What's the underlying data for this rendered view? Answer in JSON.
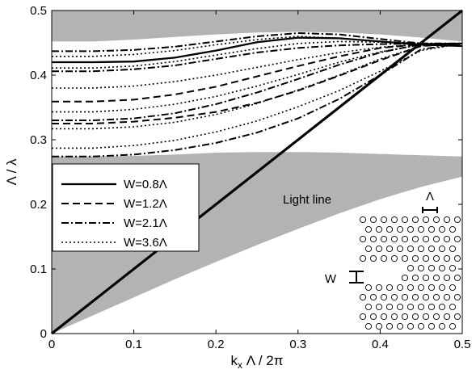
{
  "chart_data": {
    "type": "line",
    "xlabel": "k_x Λ / 2π",
    "ylabel": "Λ / λ",
    "xlim": [
      0,
      0.5
    ],
    "ylim": [
      0,
      0.5
    ],
    "xticks": [
      "0",
      "0.1",
      "0.2",
      "0.3",
      "0.4",
      "0.5"
    ],
    "yticks": [
      "0",
      "0.1",
      "0.2",
      "0.3",
      "0.4",
      "0.5"
    ],
    "grid": false,
    "legend_position": "center-left",
    "shade_color": "#b3b3b3",
    "bands": {
      "upper_band_lower_edge": {
        "x": [
          0,
          0.05,
          0.1,
          0.15,
          0.2,
          0.25,
          0.3,
          0.35,
          0.4,
          0.45,
          0.5
        ],
        "y": [
          0.452,
          0.452,
          0.455,
          0.459,
          0.463,
          0.466,
          0.467,
          0.466,
          0.463,
          0.458,
          0.452
        ]
      },
      "lower_band_upper_edge": {
        "x": [
          0,
          0.05,
          0.1,
          0.15,
          0.2,
          0.25,
          0.3,
          0.35,
          0.4,
          0.45,
          0.5
        ],
        "y": [
          0.274,
          0.274,
          0.275,
          0.277,
          0.28,
          0.281,
          0.281,
          0.28,
          0.278,
          0.276,
          0.274
        ]
      },
      "lower_band_lower_edge": {
        "x": [
          0,
          0.05,
          0.1,
          0.15,
          0.2,
          0.25,
          0.3,
          0.35,
          0.4,
          0.45,
          0.5
        ],
        "y": [
          0,
          0.028,
          0.056,
          0.084,
          0.111,
          0.137,
          0.162,
          0.186,
          0.208,
          0.227,
          0.243
        ]
      }
    },
    "light_line": {
      "x": [
        0,
        0.5
      ],
      "y": [
        0,
        0.5
      ]
    },
    "series": [
      {
        "name": "W=0.8Λ",
        "dash": "solid",
        "width": 2.3,
        "curves": [
          {
            "x": [
              0,
              0.05,
              0.1,
              0.15,
              0.2,
              0.25,
              0.3,
              0.35,
              0.4,
              0.45,
              0.5
            ],
            "y": [
              0.42,
              0.42,
              0.421,
              0.427,
              0.438,
              0.451,
              0.458,
              0.457,
              0.452,
              0.447,
              0.445
            ]
          }
        ]
      },
      {
        "name": "W=1.2Λ",
        "dash": "dash",
        "width": 2.0,
        "curves": [
          {
            "x": [
              0,
              0.05,
              0.1,
              0.15,
              0.2,
              0.25,
              0.3,
              0.35,
              0.4,
              0.45,
              0.5
            ],
            "y": [
              0.359,
              0.359,
              0.362,
              0.37,
              0.382,
              0.398,
              0.414,
              0.429,
              0.442,
              0.448,
              0.449
            ]
          },
          {
            "x": [
              0,
              0.05,
              0.1,
              0.15,
              0.2,
              0.25,
              0.3,
              0.35,
              0.4,
              0.45,
              0.5
            ],
            "y": [
              0.325,
              0.325,
              0.328,
              0.334,
              0.343,
              0.357,
              0.376,
              0.399,
              0.423,
              0.445,
              0.449
            ]
          }
        ]
      },
      {
        "name": "W=2.1Λ",
        "dash": "dashdot",
        "width": 2.0,
        "curves": [
          {
            "x": [
              0,
              0.05,
              0.1,
              0.15,
              0.2,
              0.25,
              0.3,
              0.35,
              0.4,
              0.45,
              0.5
            ],
            "y": [
              0.437,
              0.437,
              0.439,
              0.444,
              0.452,
              0.46,
              0.465,
              0.463,
              0.456,
              0.449,
              0.447
            ]
          },
          {
            "x": [
              0,
              0.05,
              0.1,
              0.15,
              0.2,
              0.25,
              0.3,
              0.35,
              0.4,
              0.45,
              0.5
            ],
            "y": [
              0.406,
              0.406,
              0.409,
              0.415,
              0.425,
              0.435,
              0.442,
              0.446,
              0.448,
              0.449,
              0.449
            ]
          },
          {
            "x": [
              0,
              0.05,
              0.1,
              0.15,
              0.2,
              0.25,
              0.3,
              0.35,
              0.4,
              0.45,
              0.5
            ],
            "y": [
              0.33,
              0.33,
              0.333,
              0.341,
              0.355,
              0.373,
              0.394,
              0.416,
              0.435,
              0.448,
              0.449
            ]
          },
          {
            "x": [
              0,
              0.05,
              0.1,
              0.15,
              0.2,
              0.25,
              0.3,
              0.35,
              0.4,
              0.45,
              0.5
            ],
            "y": [
              0.274,
              0.274,
              0.277,
              0.284,
              0.295,
              0.311,
              0.333,
              0.363,
              0.4,
              0.44,
              0.449
            ]
          }
        ]
      },
      {
        "name": "W=3.6Λ",
        "dash": "dotted",
        "width": 1.6,
        "curves": [
          {
            "x": [
              0,
              0.05,
              0.1,
              0.15,
              0.2,
              0.25,
              0.3,
              0.35,
              0.4,
              0.45,
              0.5
            ],
            "y": [
              0.429,
              0.429,
              0.432,
              0.438,
              0.447,
              0.455,
              0.46,
              0.457,
              0.452,
              0.449,
              0.449
            ]
          },
          {
            "x": [
              0,
              0.05,
              0.1,
              0.15,
              0.2,
              0.25,
              0.3,
              0.35,
              0.4,
              0.45,
              0.5
            ],
            "y": [
              0.411,
              0.411,
              0.414,
              0.421,
              0.431,
              0.441,
              0.449,
              0.452,
              0.451,
              0.449,
              0.449
            ]
          },
          {
            "x": [
              0,
              0.05,
              0.1,
              0.15,
              0.2,
              0.25,
              0.3,
              0.35,
              0.4,
              0.45,
              0.5
            ],
            "y": [
              0.38,
              0.38,
              0.383,
              0.39,
              0.4,
              0.412,
              0.424,
              0.435,
              0.443,
              0.448,
              0.449
            ]
          },
          {
            "x": [
              0,
              0.05,
              0.1,
              0.15,
              0.2,
              0.25,
              0.3,
              0.35,
              0.4,
              0.45,
              0.5
            ],
            "y": [
              0.343,
              0.343,
              0.347,
              0.355,
              0.367,
              0.383,
              0.401,
              0.42,
              0.436,
              0.447,
              0.449
            ]
          },
          {
            "x": [
              0,
              0.05,
              0.1,
              0.15,
              0.2,
              0.25,
              0.3,
              0.35,
              0.4,
              0.45,
              0.5
            ],
            "y": [
              0.317,
              0.317,
              0.32,
              0.327,
              0.339,
              0.356,
              0.377,
              0.4,
              0.425,
              0.445,
              0.449
            ]
          },
          {
            "x": [
              0,
              0.05,
              0.1,
              0.15,
              0.2,
              0.25,
              0.3,
              0.35,
              0.4,
              0.45,
              0.5
            ],
            "y": [
              0.287,
              0.287,
              0.291,
              0.299,
              0.312,
              0.329,
              0.351,
              0.376,
              0.406,
              0.438,
              0.449
            ]
          }
        ]
      }
    ],
    "annotations": {
      "light_line_label": "Light line",
      "lattice_constant_label": "Λ",
      "width_label": "W"
    }
  }
}
